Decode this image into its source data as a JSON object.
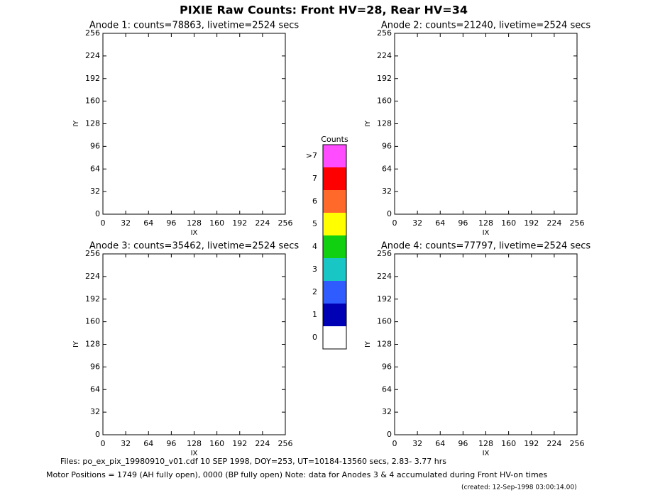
{
  "title": "PIXIE Raw Counts:  Front HV=28, Rear HV=34",
  "chart_data": [
    {
      "type": "heatmap",
      "title": "Anode 1: counts=78863, livetime=2524 secs",
      "x_label": "IX",
      "y_label": "IY",
      "xlim": [
        0,
        256
      ],
      "ylim": [
        0,
        256
      ],
      "xticks": [
        0,
        32,
        64,
        96,
        128,
        160,
        192,
        224,
        256
      ],
      "yticks": [
        0,
        32,
        64,
        96,
        128,
        160,
        192,
        224,
        256
      ]
    },
    {
      "type": "heatmap",
      "title": "Anode 2: counts=21240, livetime=2524 secs",
      "x_label": "IX",
      "y_label": "IY",
      "xlim": [
        0,
        256
      ],
      "ylim": [
        0,
        256
      ],
      "xticks": [
        0,
        32,
        64,
        96,
        128,
        160,
        192,
        224,
        256
      ],
      "yticks": [
        0,
        32,
        64,
        96,
        128,
        160,
        192,
        224,
        256
      ]
    },
    {
      "type": "heatmap",
      "title": "Anode 3: counts=35462, livetime=2524 secs",
      "x_label": "IX",
      "y_label": "IY",
      "xlim": [
        0,
        256
      ],
      "ylim": [
        0,
        256
      ],
      "xticks": [
        0,
        32,
        64,
        96,
        128,
        160,
        192,
        224,
        256
      ],
      "yticks": [
        0,
        32,
        64,
        96,
        128,
        160,
        192,
        224,
        256
      ]
    },
    {
      "type": "heatmap",
      "title": "Anode 4: counts=77797, livetime=2524 secs",
      "x_label": "IX",
      "y_label": "IY",
      "xlim": [
        0,
        256
      ],
      "ylim": [
        0,
        256
      ],
      "xticks": [
        0,
        32,
        64,
        96,
        128,
        160,
        192,
        224,
        256
      ],
      "yticks": [
        0,
        32,
        64,
        96,
        128,
        160,
        192,
        224,
        256
      ]
    }
  ],
  "colorbar": {
    "title": "Counts",
    "labels": [
      "0",
      "1",
      "2",
      "3",
      "4",
      "5",
      "6",
      "7",
      ">7"
    ],
    "colors": [
      "#ffffff",
      "#0000b4",
      "#2f5cff",
      "#19c6c6",
      "#10d010",
      "#ffff00",
      "#ff6a2a",
      "#ff0000",
      "#ff4cff"
    ]
  },
  "footer": {
    "line1": "Files: po_ex_pix_19980910_v01.cdf    10 SEP 1998, DOY=253, UT=10184-13560 secs,  2.83- 3.77 hrs",
    "line2": "Motor Positions = 1749 (AH fully open), 0000 (BP fully open)    Note: data for Anodes 3 & 4 accumulated during Front HV-on times",
    "created": "(created: 12-Sep-1998 03:00:14.00)"
  }
}
